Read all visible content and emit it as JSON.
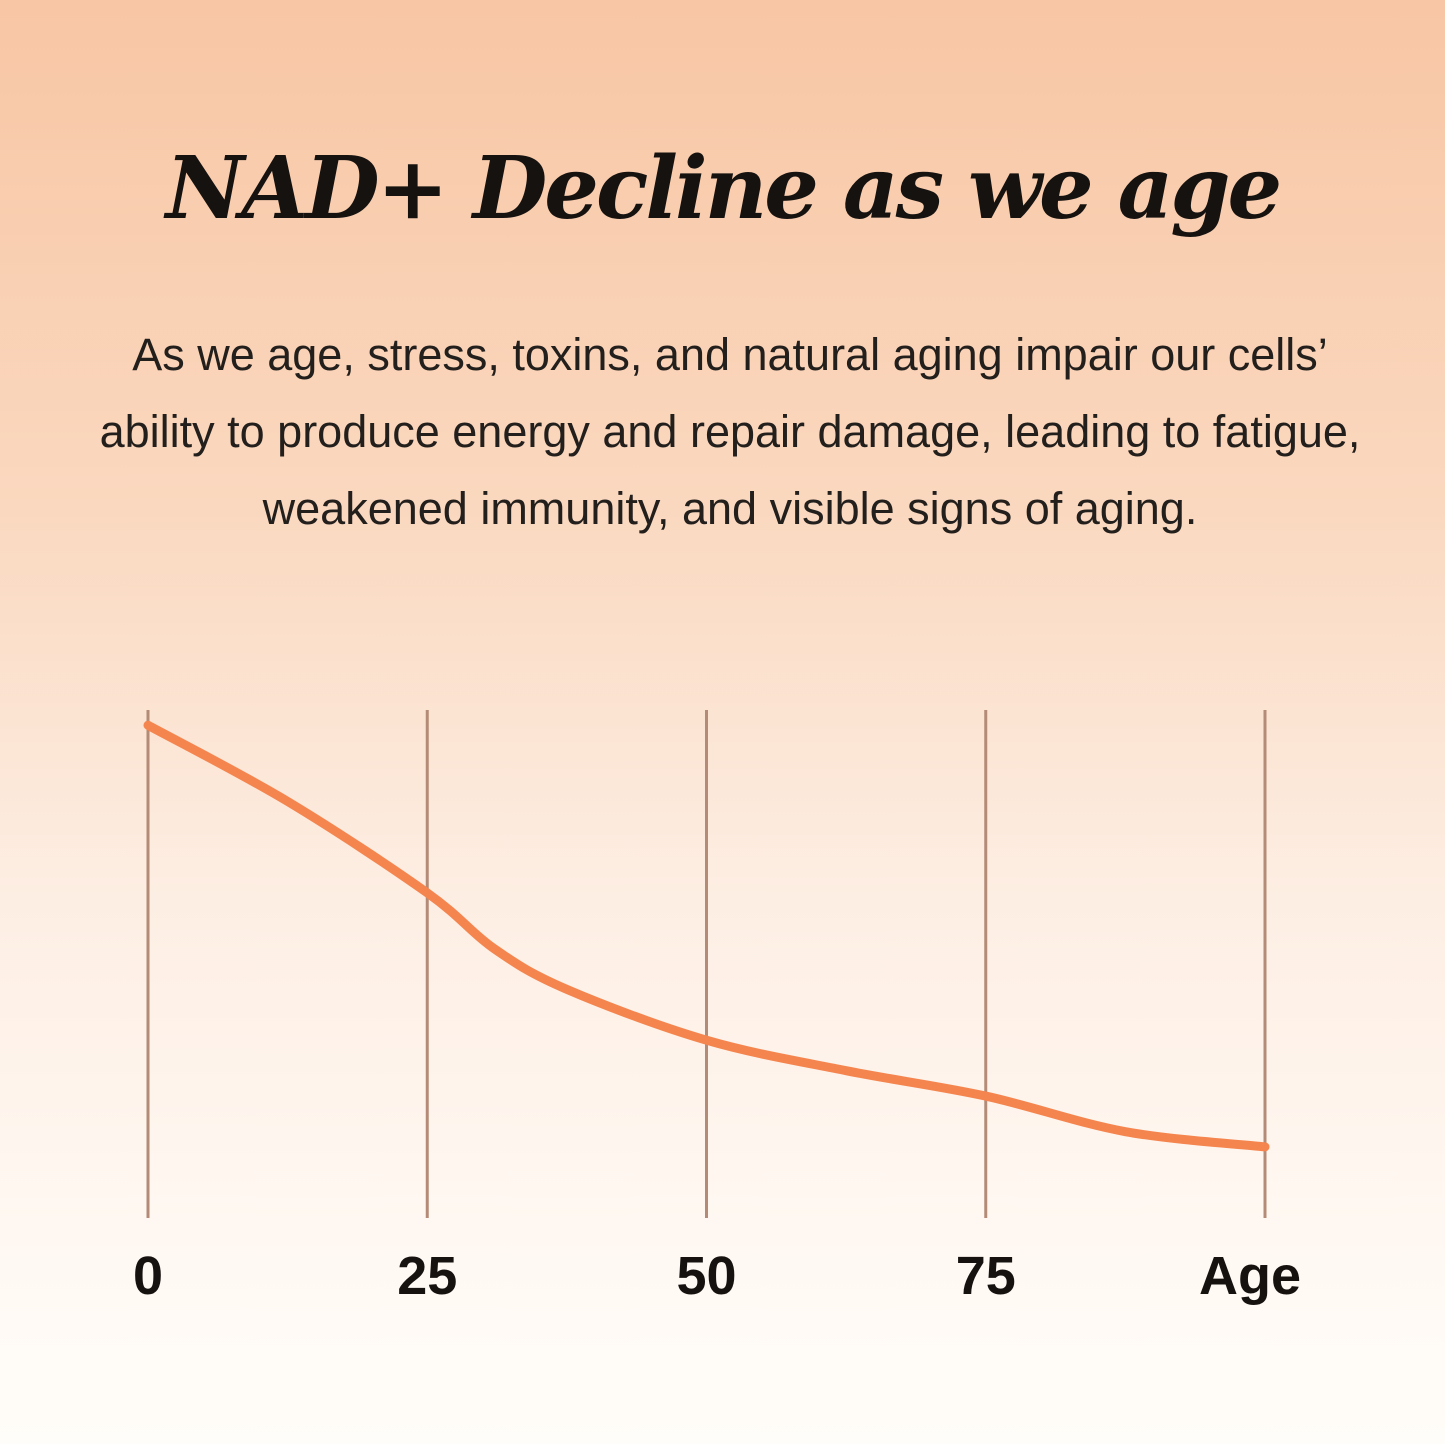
{
  "title": "NAD+ Decline as we age",
  "subtitle": "As we age, stress, toxins, and natural aging impair our cells’ ability to produce energy and repair damage, leading to fatigue, weakened immunity, and visible signs of aging.",
  "colors": {
    "line": "#f5854f",
    "gridline": "#b38b76",
    "text": "#161210"
  },
  "chart_data": {
    "type": "line",
    "title": "NAD+ Decline as we age",
    "xlabel": "Age",
    "ylabel": "",
    "x_ticks": [
      "0",
      "25",
      "50",
      "75",
      "Age"
    ],
    "x_tick_values": [
      0,
      25,
      50,
      75,
      100
    ],
    "xlim": [
      0,
      100
    ],
    "ylim": [
      0,
      100
    ],
    "grid": "vertical",
    "y_axis_shown": false,
    "series": [
      {
        "x": [
          0,
          12.5,
          25,
          31,
          37.5,
          50,
          62.5,
          75,
          87.5,
          100
        ],
        "y": [
          97,
          82,
          64,
          53,
          45,
          35,
          29,
          24,
          17,
          14
        ]
      }
    ]
  }
}
